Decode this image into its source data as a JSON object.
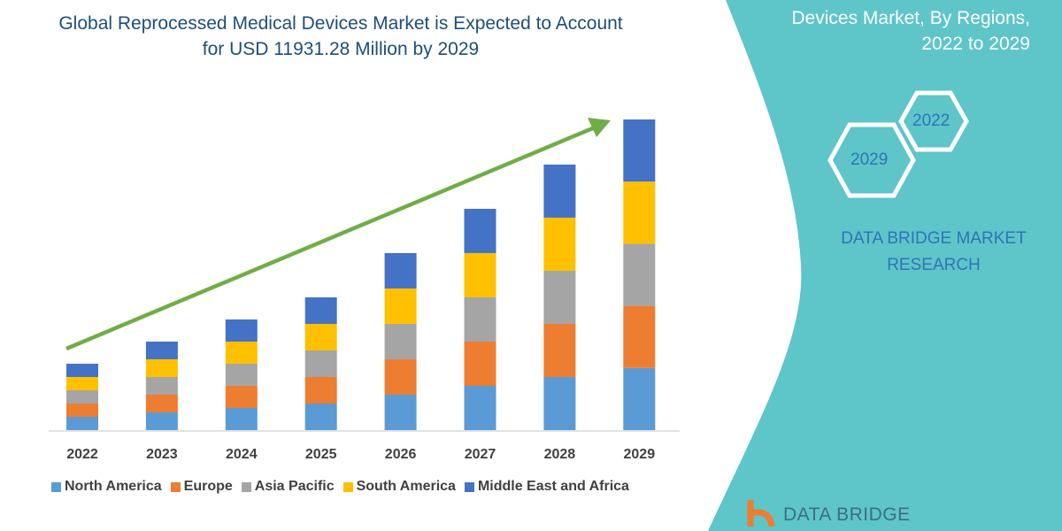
{
  "title": "Global Reprocessed Medical Devices Market is Expected to Account for USD 11931.28 Million by 2029",
  "side_title_lines": [
    "Devices Market, By Regions,",
    "2022 to 2029"
  ],
  "hex_labels": [
    "2022",
    "2029"
  ],
  "brand_text": "DATA BRIDGE MARKET RESEARCH",
  "logo_text": "DATA BRIDGE",
  "colors": {
    "teal_panel": "#5ec5c8",
    "arrow": "#70ad47",
    "title": "#1f4e79"
  },
  "chart_data": {
    "type": "bar",
    "stacked": true,
    "categories": [
      "2022",
      "2023",
      "2024",
      "2025",
      "2026",
      "2027",
      "2028",
      "2029"
    ],
    "series": [
      {
        "name": "North America",
        "color": "#5b9bd5",
        "values": [
          510,
          680,
          850,
          1020,
          1360,
          1700,
          2040,
          2386
        ]
      },
      {
        "name": "Europe",
        "color": "#ed7d31",
        "values": [
          510,
          680,
          850,
          1020,
          1360,
          1700,
          2040,
          2386
        ]
      },
      {
        "name": "Asia Pacific",
        "color": "#a5a5a5",
        "values": [
          510,
          680,
          850,
          1020,
          1360,
          1700,
          2040,
          2386
        ]
      },
      {
        "name": "South America",
        "color": "#ffc000",
        "values": [
          510,
          680,
          850,
          1020,
          1360,
          1700,
          2040,
          2386
        ]
      },
      {
        "name": "Middle East and Africa",
        "color": "#4472c4",
        "values": [
          510,
          680,
          850,
          1020,
          1360,
          1700,
          2040,
          2387
        ]
      }
    ],
    "ylim": [
      0,
      11931.28
    ],
    "grid": false,
    "legend": "bottom",
    "trend_arrow": true
  }
}
